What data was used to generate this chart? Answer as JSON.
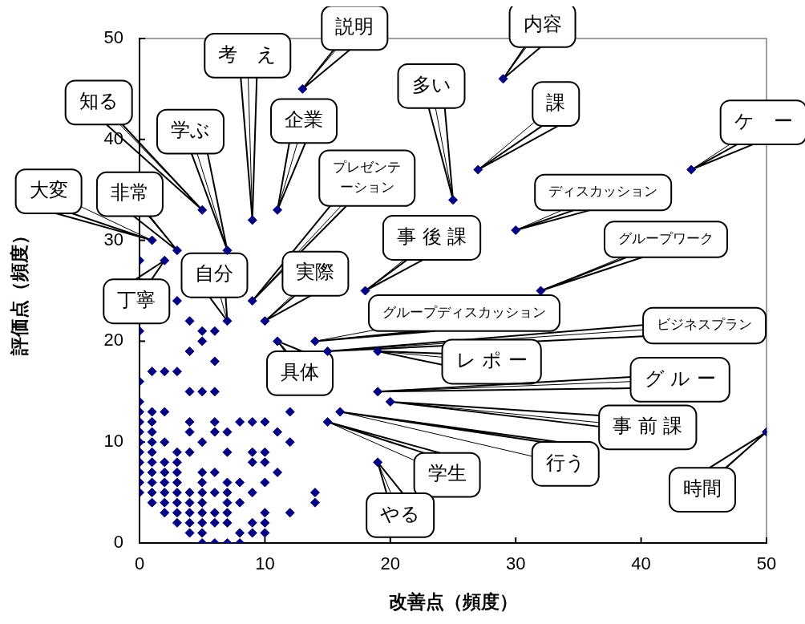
{
  "chart_data": {
    "type": "scatter",
    "xlabel": "改善点（頻度）",
    "ylabel": "評価点（頻度）",
    "color": "#000080",
    "marker": "diamond",
    "xlim": [
      0,
      50
    ],
    "ylim": [
      0,
      50
    ],
    "xticks": [
      0,
      10,
      20,
      30,
      40,
      50
    ],
    "yticks": [
      0,
      10,
      20,
      30,
      40,
      50
    ],
    "x": [
      0,
      0,
      0,
      0,
      0,
      0,
      0,
      0,
      0,
      0,
      0,
      0,
      0,
      1,
      1,
      1,
      1,
      1,
      1,
      1,
      1,
      1,
      1,
      1,
      2,
      2,
      2,
      2,
      2,
      2,
      2,
      2,
      2,
      3,
      3,
      3,
      3,
      3,
      3,
      3,
      3,
      3,
      3,
      4,
      4,
      4,
      4,
      4,
      4,
      4,
      4,
      4,
      4,
      4,
      5,
      5,
      5,
      5,
      5,
      5,
      5,
      5,
      5,
      5,
      5,
      5,
      6,
      6,
      6,
      6,
      6,
      6,
      6,
      6,
      6,
      6,
      7,
      7,
      7,
      7,
      7,
      7,
      7,
      7,
      8,
      8,
      8,
      8,
      8,
      9,
      9,
      9,
      9,
      9,
      9,
      10,
      10,
      10,
      10,
      10,
      10,
      10,
      11,
      11,
      12,
      12,
      12,
      14,
      14,
      13,
      29,
      25,
      27,
      44,
      30,
      32,
      18,
      5,
      9,
      11,
      7,
      1,
      3,
      2,
      7,
      9,
      10,
      11,
      14,
      15,
      19,
      19,
      20,
      16,
      15,
      19,
      50
    ],
    "values": [
      5,
      6,
      7,
      8,
      9,
      10,
      11,
      12,
      13,
      14,
      16,
      21,
      28,
      4,
      5,
      6,
      7,
      8,
      9,
      10,
      11,
      12,
      13,
      17,
      3,
      4,
      5,
      6,
      7,
      8,
      10,
      13,
      17,
      2,
      3,
      4,
      5,
      6,
      7,
      8,
      9,
      17,
      24,
      1,
      2,
      3,
      4,
      5,
      9,
      11,
      12,
      15,
      19,
      22,
      0,
      1,
      2,
      3,
      4,
      5,
      6,
      7,
      10,
      15,
      20,
      21,
      0,
      2,
      3,
      5,
      7,
      11,
      12,
      15,
      18,
      21,
      0,
      2,
      3,
      4,
      5,
      6,
      9,
      11,
      0,
      1,
      4,
      6,
      12,
      1,
      2,
      5,
      8,
      9,
      12,
      1,
      2,
      3,
      6,
      8,
      9,
      12,
      7,
      11,
      3,
      10,
      13,
      4,
      5,
      45,
      46,
      34,
      37,
      37,
      31,
      25,
      25,
      33,
      32,
      33,
      29,
      30,
      29,
      28,
      22,
      24,
      22,
      20,
      20,
      19,
      19,
      15,
      14,
      13,
      12,
      8,
      11
    ],
    "annotations": [
      {
        "text": "説明",
        "x": 13,
        "y": 45
      },
      {
        "text": "内容",
        "x": 29,
        "y": 46
      },
      {
        "text": "多い",
        "x": 25,
        "y": 34
      },
      {
        "text": "課",
        "x": 27,
        "y": 37
      },
      {
        "text": "ケ　ー",
        "x": 44,
        "y": 37
      },
      {
        "text": "ディスカッション",
        "x": 30,
        "y": 31
      },
      {
        "text": "グループワーク",
        "x": 32,
        "y": 25
      },
      {
        "text": "事 後 課",
        "x": 18,
        "y": 25
      },
      {
        "text": "知る",
        "x": 5,
        "y": 33
      },
      {
        "text": "考　え",
        "x": 9,
        "y": 32
      },
      {
        "text": "企業",
        "x": 11,
        "y": 33
      },
      {
        "text": "学ぶ",
        "x": 7,
        "y": 29
      },
      {
        "text": "大変",
        "x": 1,
        "y": 30
      },
      {
        "text": "非常",
        "x": 3,
        "y": 29
      },
      {
        "text": "丁寧",
        "x": 2,
        "y": 28
      },
      {
        "text": "自分",
        "x": 7,
        "y": 22
      },
      {
        "text": "プレゼンテーション",
        "x": 9,
        "y": 24
      },
      {
        "text": "実際",
        "x": 10,
        "y": 22
      },
      {
        "text": "具体",
        "x": 11,
        "y": 20
      },
      {
        "text": "グループディスカッション",
        "x": 14,
        "y": 20
      },
      {
        "text": "ビジネスプラン",
        "x": 15,
        "y": 19
      },
      {
        "text": "レ ポ ー",
        "x": 19,
        "y": 19
      },
      {
        "text": "グ ル ー",
        "x": 19,
        "y": 15
      },
      {
        "text": "事 前 課",
        "x": 20,
        "y": 14
      },
      {
        "text": "行う",
        "x": 16,
        "y": 13
      },
      {
        "text": "学生",
        "x": 15,
        "y": 12
      },
      {
        "text": "やる",
        "x": 19,
        "y": 8
      },
      {
        "text": "時間",
        "x": 50,
        "y": 11
      }
    ]
  }
}
